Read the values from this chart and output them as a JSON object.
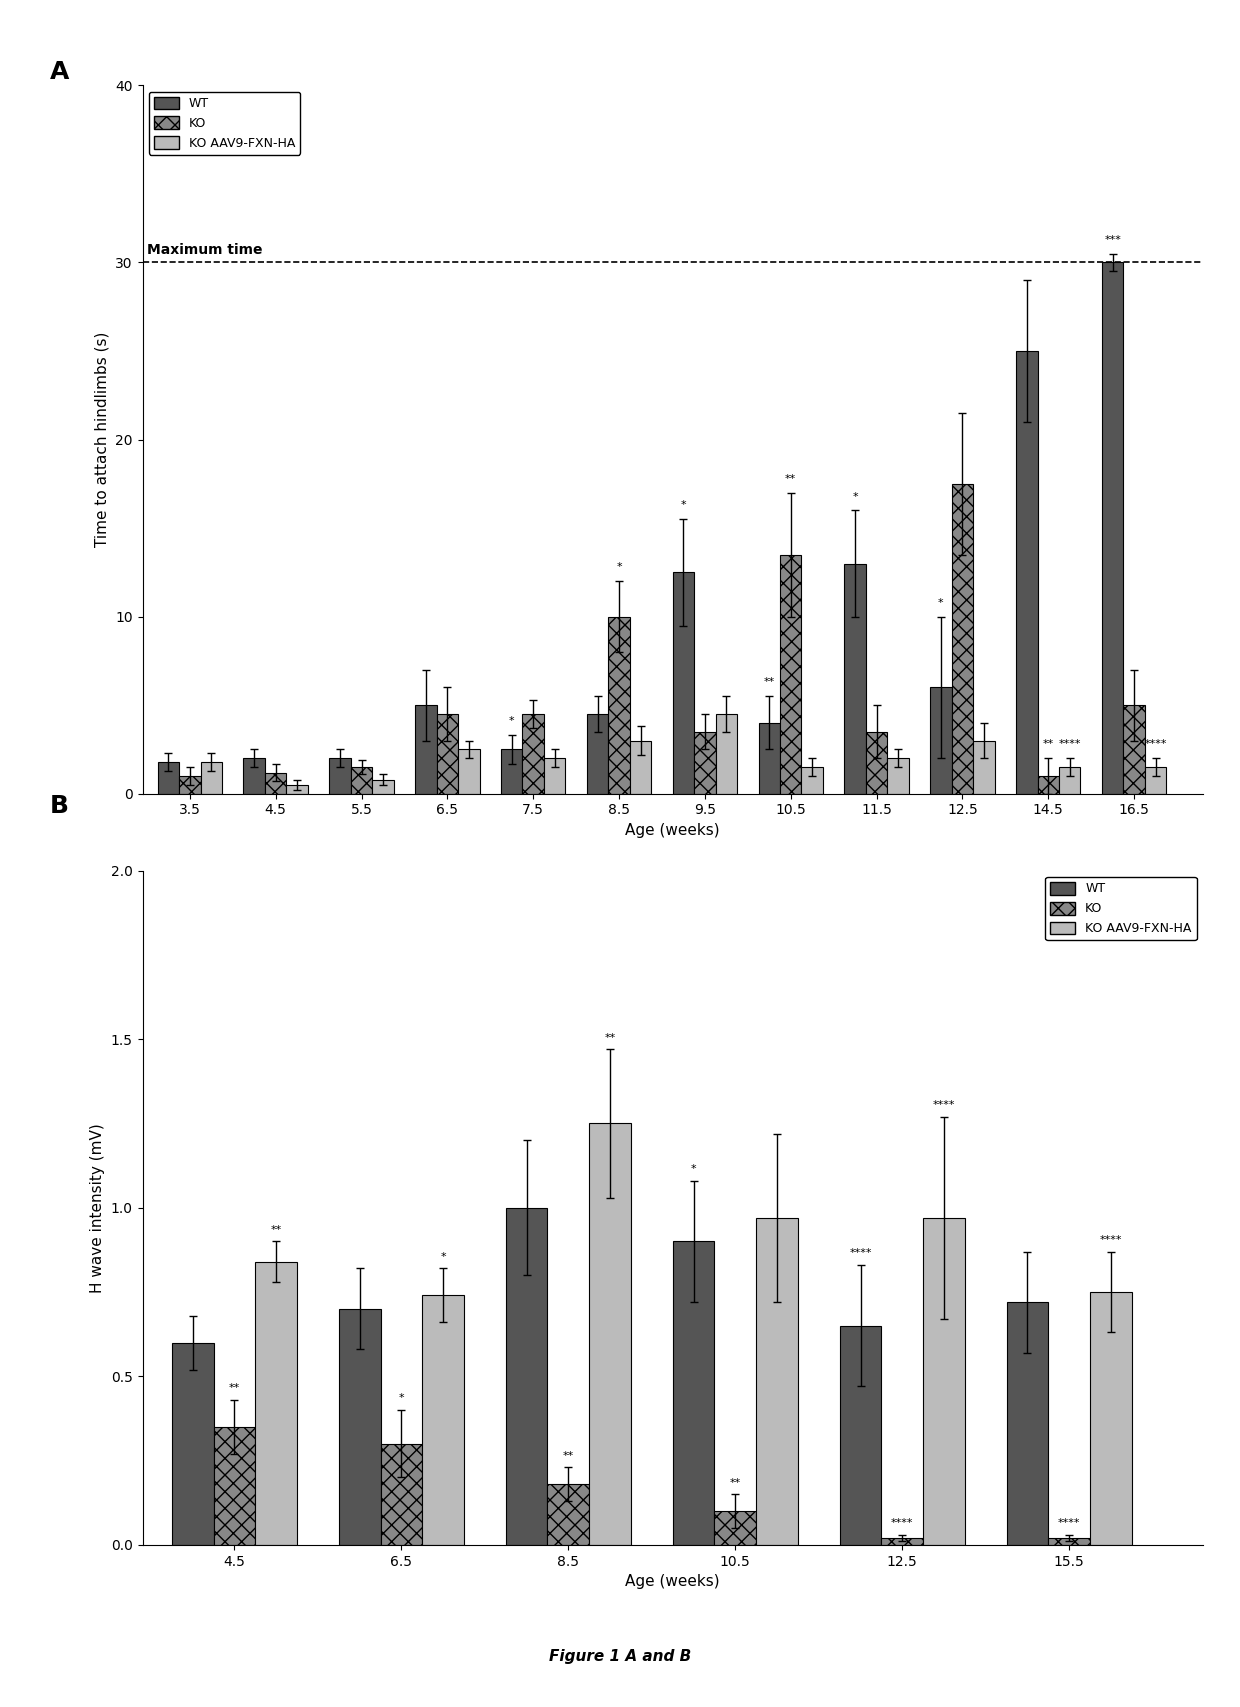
{
  "panel_A": {
    "title_label": "A",
    "xlabel": "Age (weeks)",
    "ylabel": "Time to attach hindlimbs (s)",
    "ylim": [
      0,
      40
    ],
    "yticks": [
      0,
      10,
      20,
      30,
      40
    ],
    "max_time_line": 30,
    "max_time_label": "Maximum time",
    "ages": [
      "3.5",
      "4.5",
      "5.5",
      "6.5",
      "7.5",
      "8.5",
      "9.5",
      "10.5",
      "11.5",
      "12.5",
      "14.5",
      "16.5"
    ],
    "wt_mean": [
      1.8,
      2.0,
      2.0,
      5.0,
      2.5,
      4.5,
      12.5,
      4.0,
      13.0,
      6.0,
      25.0,
      30.0
    ],
    "wt_err": [
      0.5,
      0.5,
      0.5,
      2.0,
      0.8,
      1.0,
      3.0,
      1.5,
      3.0,
      4.0,
      4.0,
      0.5
    ],
    "ko_mean": [
      1.0,
      1.2,
      1.5,
      4.5,
      4.5,
      10.0,
      3.5,
      13.5,
      3.5,
      17.5,
      1.0,
      5.0
    ],
    "ko_err": [
      0.5,
      0.5,
      0.4,
      1.5,
      0.8,
      2.0,
      1.0,
      3.5,
      1.5,
      4.0,
      1.0,
      2.0
    ],
    "aav_mean": [
      1.8,
      0.5,
      0.8,
      2.5,
      2.0,
      3.0,
      4.5,
      1.5,
      2.0,
      3.0,
      1.5,
      1.5
    ],
    "aav_err": [
      0.5,
      0.3,
      0.3,
      0.5,
      0.5,
      0.8,
      1.0,
      0.5,
      0.5,
      1.0,
      0.5,
      0.5
    ],
    "wt_sig": [
      "",
      "",
      "",
      "",
      "*",
      "",
      "*",
      "**",
      "*",
      "*",
      "",
      "***"
    ],
    "ko_sig": [
      "",
      "",
      "",
      "",
      "",
      "*",
      "",
      "**",
      "",
      "",
      "**",
      ""
    ],
    "aav_sig": [
      "",
      "",
      "",
      "",
      "",
      "",
      "",
      "",
      "",
      "",
      "****",
      "****"
    ],
    "legend_labels": [
      "WT",
      "KO",
      "KO AAV9-FXN-HA"
    ],
    "wt_color": "#555555",
    "ko_color": "#888888",
    "aav_color": "#bbbbbb",
    "wt_hatch": "",
    "ko_hatch": "xx",
    "aav_hatch": "==="
  },
  "panel_B": {
    "title_label": "B",
    "xlabel": "Age (weeks)",
    "ylabel": "H wave intensity (mV)",
    "ylim": [
      0.0,
      2.0
    ],
    "yticks": [
      0.0,
      0.5,
      1.0,
      1.5,
      2.0
    ],
    "ages": [
      "4.5",
      "6.5",
      "8.5",
      "10.5",
      "12.5",
      "15.5"
    ],
    "wt_mean": [
      0.6,
      0.7,
      1.0,
      0.9,
      0.65,
      0.72
    ],
    "wt_err": [
      0.08,
      0.12,
      0.2,
      0.18,
      0.18,
      0.15
    ],
    "ko_mean": [
      0.35,
      0.3,
      0.18,
      0.1,
      0.02,
      0.02
    ],
    "ko_err": [
      0.08,
      0.1,
      0.05,
      0.05,
      0.01,
      0.01
    ],
    "aav_mean": [
      0.84,
      0.74,
      1.25,
      0.97,
      0.97,
      0.75
    ],
    "aav_err": [
      0.06,
      0.08,
      0.22,
      0.25,
      0.3,
      0.12
    ],
    "wt_sig": [
      "",
      "",
      "",
      "*",
      "****",
      ""
    ],
    "ko_sig": [
      "**",
      "*",
      "**",
      "**",
      "****",
      "****"
    ],
    "aav_sig": [
      "**",
      "*",
      "**",
      "",
      "****",
      "****"
    ],
    "legend_labels": [
      "WT",
      "KO",
      "KO AAV9-FXN-HA"
    ],
    "wt_color": "#555555",
    "ko_color": "#888888",
    "aav_color": "#bbbbbb",
    "wt_hatch": "",
    "ko_hatch": "xx",
    "aav_hatch": "==="
  },
  "figure_caption": "Figure 1 A and B",
  "background_color": "#ffffff"
}
